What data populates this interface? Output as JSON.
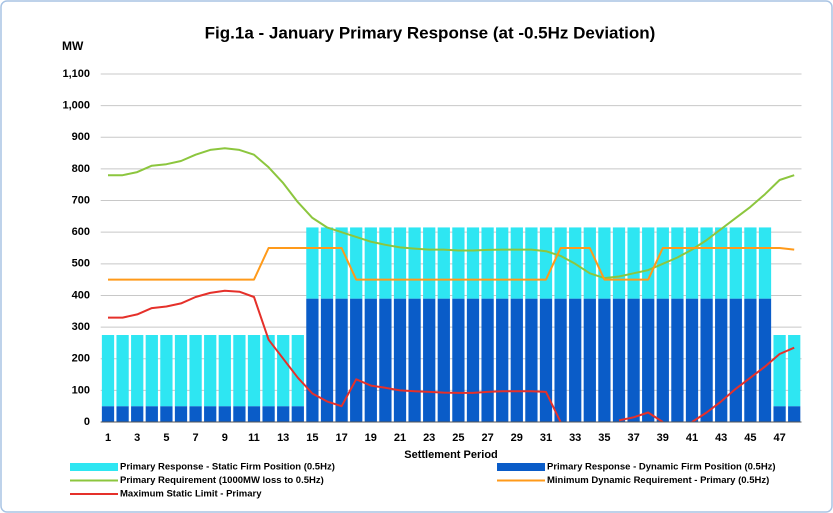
{
  "chart_data": {
    "type": "bar",
    "title": "Fig.1a - January Primary Response (at -0.5Hz Deviation)",
    "y_label": "MW",
    "x_label": "Settlement Period",
    "categories": [
      1,
      null,
      3,
      null,
      5,
      null,
      7,
      null,
      9,
      null,
      11,
      null,
      13,
      null,
      15,
      null,
      17,
      null,
      19,
      null,
      21,
      null,
      23,
      null,
      25,
      null,
      27,
      null,
      29,
      null,
      31,
      null,
      33,
      null,
      35,
      null,
      37,
      null,
      39,
      null,
      41,
      null,
      43,
      null,
      45,
      null,
      47,
      null
    ],
    "ylim": [
      0,
      1100
    ],
    "yticks": [
      0,
      100,
      200,
      300,
      400,
      500,
      600,
      700,
      800,
      900,
      {
        "value": 1000,
        "label": "1,000"
      },
      {
        "value": 1100,
        "label": "1,100"
      }
    ],
    "grid": true,
    "series": [
      {
        "name": "Primary Response - Static Firm Position (0.5Hz)",
        "type": "bar",
        "color": "#2ee6f2",
        "values": [
          225,
          225,
          225,
          225,
          225,
          225,
          225,
          225,
          225,
          225,
          225,
          225,
          225,
          225,
          225,
          225,
          225,
          225,
          225,
          225,
          225,
          225,
          225,
          225,
          225,
          225,
          225,
          225,
          225,
          225,
          225,
          225,
          225,
          225,
          225,
          225,
          225,
          225,
          225,
          225,
          225,
          225,
          225,
          225,
          225,
          225,
          225,
          225
        ]
      },
      {
        "name": "Primary Response - Dynamic Firm Position (0.5Hz)",
        "type": "bar",
        "color": "#0a5cc8",
        "values": [
          50,
          50,
          50,
          50,
          50,
          50,
          50,
          50,
          50,
          50,
          50,
          50,
          50,
          50,
          390,
          390,
          390,
          390,
          390,
          390,
          390,
          390,
          390,
          390,
          390,
          390,
          390,
          390,
          390,
          390,
          390,
          390,
          390,
          390,
          390,
          390,
          390,
          390,
          390,
          390,
          390,
          390,
          390,
          390,
          390,
          390,
          50,
          50
        ]
      },
      {
        "name": "Primary Requirement  (1000MW  loss to 0.5Hz)",
        "type": "line",
        "color": "#8cc63e",
        "values": [
          780,
          780,
          790,
          810,
          815,
          825,
          845,
          860,
          865,
          860,
          845,
          805,
          755,
          695,
          645,
          615,
          600,
          585,
          570,
          560,
          552,
          548,
          545,
          545,
          542,
          542,
          544,
          545,
          545,
          545,
          540,
          525,
          500,
          470,
          455,
          460,
          470,
          480,
          500,
          520,
          545,
          575,
          610,
          645,
          680,
          720,
          765,
          780
        ]
      },
      {
        "name": "Minimum Dynamic Requirement  - Primary  (0.5Hz)",
        "type": "line",
        "color": "#ff9a1a",
        "values": [
          450,
          450,
          450,
          450,
          450,
          450,
          450,
          450,
          450,
          450,
          450,
          550,
          550,
          550,
          550,
          550,
          550,
          450,
          450,
          450,
          450,
          450,
          450,
          450,
          450,
          450,
          450,
          450,
          450,
          450,
          450,
          550,
          550,
          550,
          450,
          450,
          450,
          450,
          550,
          550,
          550,
          550,
          550,
          550,
          550,
          550,
          550,
          545
        ]
      },
      {
        "name": "Maximum Static Limit - Primary",
        "type": "line",
        "color": "#e5302a",
        "values": [
          330,
          330,
          340,
          360,
          365,
          375,
          395,
          408,
          415,
          412,
          395,
          260,
          200,
          140,
          90,
          65,
          50,
          135,
          115,
          108,
          100,
          97,
          95,
          93,
          92,
          92,
          95,
          97,
          97,
          97,
          95,
          0,
          null,
          null,
          null,
          5,
          15,
          30,
          0,
          null,
          0,
          30,
          65,
          105,
          140,
          175,
          215,
          235
        ]
      }
    ]
  }
}
